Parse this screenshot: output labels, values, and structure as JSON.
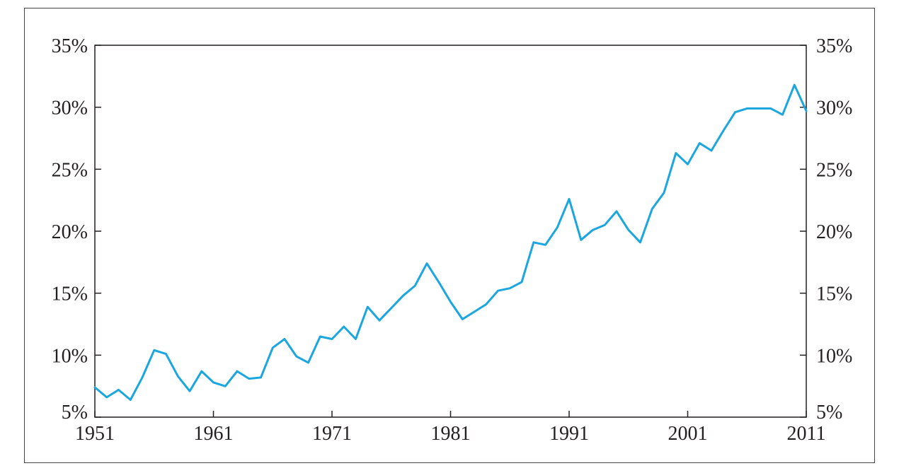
{
  "chart_data": {
    "type": "line",
    "title": "",
    "xlabel": "",
    "ylabel": "",
    "xlim": [
      1951,
      2011
    ],
    "ylim": [
      5,
      35
    ],
    "x_ticks": [
      1951,
      1961,
      1971,
      1981,
      1991,
      2001,
      2011
    ],
    "x_tick_labels": [
      "1951",
      "1961",
      "1971",
      "1981",
      "1991",
      "2001",
      "2011"
    ],
    "y_ticks": [
      5,
      10,
      15,
      20,
      25,
      30,
      35
    ],
    "y_tick_labels": [
      "5%",
      "10%",
      "15%",
      "20%",
      "25%",
      "30%",
      "35%"
    ],
    "y_axis_both_sides": true,
    "grid": false,
    "legend": "none",
    "line_color": "#1ba6df",
    "axis_color": "#231f20",
    "series": [
      {
        "x": [
          1951,
          1952,
          1953,
          1954,
          1955,
          1956,
          1957,
          1958,
          1959,
          1960,
          1961,
          1962,
          1963,
          1964,
          1965,
          1966,
          1967,
          1968,
          1969,
          1970,
          1971,
          1972,
          1973,
          1974,
          1975,
          1976,
          1977,
          1978,
          1979,
          1980,
          1981,
          1982,
          1983,
          1984,
          1985,
          1986,
          1987,
          1988,
          1989,
          1990,
          1991,
          1992,
          1993,
          1994,
          1995,
          1996,
          1997,
          1998,
          1999,
          2000,
          2001,
          2002,
          2003,
          2004,
          2005,
          2006,
          2007,
          2008,
          2009,
          2010,
          2011
        ],
        "values": [
          7.4,
          6.6,
          7.2,
          6.4,
          8.2,
          10.4,
          10.1,
          8.3,
          7.1,
          8.7,
          7.8,
          7.5,
          8.7,
          8.1,
          8.2,
          10.6,
          11.3,
          9.9,
          9.4,
          11.5,
          11.3,
          12.3,
          11.3,
          13.9,
          12.8,
          13.8,
          14.8,
          15.6,
          17.4,
          15.9,
          14.3,
          12.9,
          13.5,
          14.1,
          15.2,
          15.4,
          15.9,
          19.1,
          18.9,
          20.3,
          22.6,
          19.3,
          20.1,
          20.5,
          21.6,
          20.1,
          19.1,
          21.8,
          23.1,
          26.3,
          25.4,
          27.1,
          26.5,
          28.1,
          29.6,
          29.9,
          29.9,
          29.9,
          29.4,
          31.8,
          29.7
        ]
      }
    ]
  }
}
